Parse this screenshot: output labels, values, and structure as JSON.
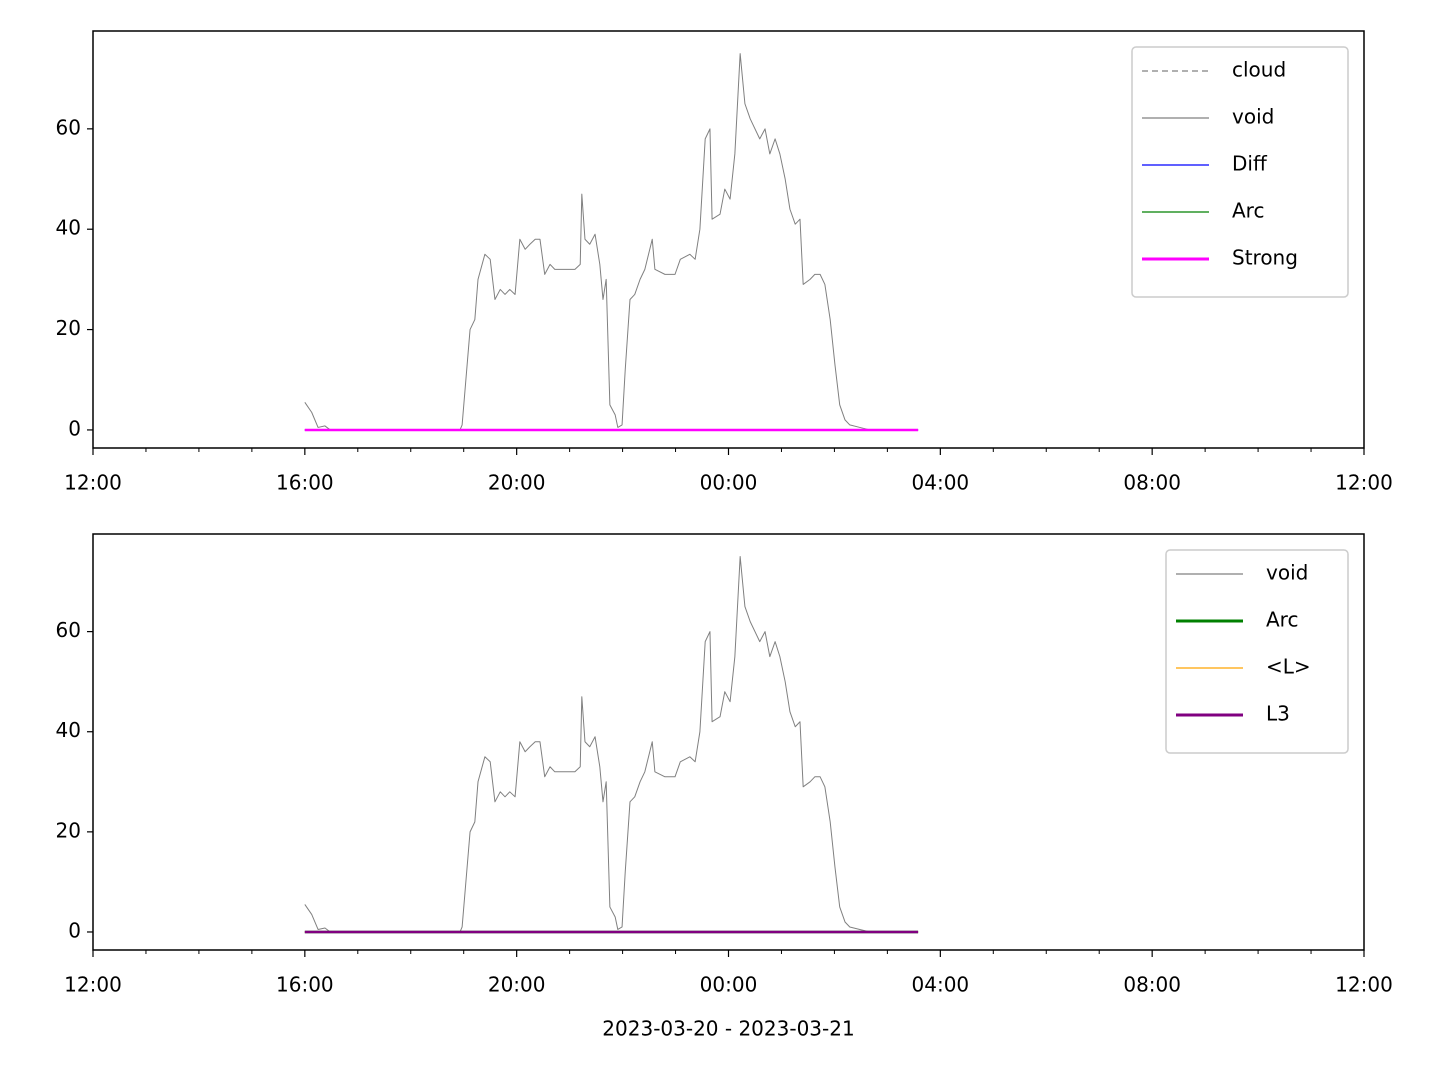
{
  "chart_data": [
    {
      "type": "line",
      "xlim": [
        12,
        36
      ],
      "ylim": [
        -3.6,
        79.5
      ],
      "xticks": [
        {
          "value": 12,
          "label": "12:00"
        },
        {
          "value": 16,
          "label": "16:00"
        },
        {
          "value": 20,
          "label": "20:00"
        },
        {
          "value": 24,
          "label": "00:00"
        },
        {
          "value": 28,
          "label": "04:00"
        },
        {
          "value": 32,
          "label": "08:00"
        },
        {
          "value": 36,
          "label": "12:00"
        }
      ],
      "xminorticks": [
        13,
        14,
        15,
        17,
        18,
        19,
        21,
        22,
        23,
        25,
        26,
        27,
        29,
        30,
        31,
        33,
        34,
        35
      ],
      "yticks": [
        0,
        20,
        40,
        60
      ],
      "legend": "upper right",
      "series": [
        {
          "name": "cloud",
          "color": "#808080",
          "dashed": true,
          "width": 1,
          "x": [
            16.0,
            27.58
          ],
          "values": [
            0,
            0
          ]
        },
        {
          "name": "void",
          "color": "#808080",
          "width": 1,
          "x": [
            16.0,
            16.13,
            16.25,
            16.38,
            16.48,
            18.93,
            18.97,
            19.12,
            19.21,
            19.27,
            19.4,
            19.5,
            19.59,
            19.69,
            19.78,
            19.87,
            19.97,
            20.06,
            20.16,
            20.25,
            20.35,
            20.44,
            20.53,
            20.63,
            20.72,
            20.91,
            21.1,
            21.2,
            21.23,
            21.29,
            21.38,
            21.48,
            21.57,
            21.63,
            21.69,
            21.76,
            21.86,
            21.91,
            21.99,
            22.05,
            22.14,
            22.23,
            22.33,
            22.42,
            22.56,
            22.61,
            22.8,
            22.99,
            23.09,
            23.27,
            23.37,
            23.46,
            23.56,
            23.65,
            23.69,
            23.84,
            23.93,
            24.03,
            24.12,
            24.22,
            24.31,
            24.41,
            24.59,
            24.69,
            24.78,
            24.88,
            24.97,
            25.07,
            25.16,
            25.26,
            25.35,
            25.41,
            25.54,
            25.63,
            25.73,
            25.82,
            25.92,
            26.01,
            26.1,
            26.2,
            26.29,
            26.48,
            26.67,
            27.58
          ],
          "values": [
            5.5,
            3.5,
            0.5,
            0.8,
            0,
            0,
            1,
            20,
            22,
            30,
            35,
            34,
            26,
            28,
            27,
            28,
            27,
            38,
            36,
            37,
            38,
            38,
            31,
            33,
            32,
            32,
            32,
            33,
            47,
            38,
            37,
            39,
            33,
            26,
            30,
            5,
            3,
            0.5,
            1,
            12,
            26,
            27,
            30,
            32,
            38,
            32,
            31,
            31,
            34,
            35,
            34,
            40,
            58,
            60,
            42,
            43,
            48,
            46,
            55,
            75,
            65,
            62,
            58,
            60,
            55,
            58,
            55,
            50,
            44,
            41,
            42,
            29,
            30,
            31,
            31,
            29,
            22,
            13,
            5,
            2,
            1,
            0.5,
            0,
            0
          ]
        },
        {
          "name": "Diff",
          "color": "#0000ff",
          "width": 1,
          "x": [
            16.0,
            27.58
          ],
          "values": [
            0,
            0
          ]
        },
        {
          "name": "Arc",
          "color": "#008000",
          "width": 1,
          "x": [
            16.0,
            27.58
          ],
          "values": [
            0,
            0
          ]
        },
        {
          "name": "Strong",
          "color": "#ff00ff",
          "width": 2.5,
          "x": [
            16.0,
            27.58
          ],
          "values": [
            0,
            0
          ]
        }
      ]
    },
    {
      "type": "line",
      "xlabel": "2023-03-20 - 2023-03-21",
      "xlim": [
        12,
        36
      ],
      "ylim": [
        -3.6,
        79.5
      ],
      "xticks": [
        {
          "value": 12,
          "label": "12:00"
        },
        {
          "value": 16,
          "label": "16:00"
        },
        {
          "value": 20,
          "label": "20:00"
        },
        {
          "value": 24,
          "label": "00:00"
        },
        {
          "value": 28,
          "label": "04:00"
        },
        {
          "value": 32,
          "label": "08:00"
        },
        {
          "value": 36,
          "label": "12:00"
        }
      ],
      "xminorticks": [
        13,
        14,
        15,
        17,
        18,
        19,
        21,
        22,
        23,
        25,
        26,
        27,
        29,
        30,
        31,
        33,
        34,
        35
      ],
      "yticks": [
        0,
        20,
        40,
        60
      ],
      "legend": "upper right",
      "series": [
        {
          "name": "void",
          "color": "#808080",
          "width": 1,
          "x": [
            16.0,
            16.13,
            16.25,
            16.38,
            16.48,
            18.93,
            18.97,
            19.12,
            19.21,
            19.27,
            19.4,
            19.5,
            19.59,
            19.69,
            19.78,
            19.87,
            19.97,
            20.06,
            20.16,
            20.25,
            20.35,
            20.44,
            20.53,
            20.63,
            20.72,
            20.91,
            21.1,
            21.2,
            21.23,
            21.29,
            21.38,
            21.48,
            21.57,
            21.63,
            21.69,
            21.76,
            21.86,
            21.91,
            21.99,
            22.05,
            22.14,
            22.23,
            22.33,
            22.42,
            22.56,
            22.61,
            22.8,
            22.99,
            23.09,
            23.27,
            23.37,
            23.46,
            23.56,
            23.65,
            23.69,
            23.84,
            23.93,
            24.03,
            24.12,
            24.22,
            24.31,
            24.41,
            24.59,
            24.69,
            24.78,
            24.88,
            24.97,
            25.07,
            25.16,
            25.26,
            25.35,
            25.41,
            25.54,
            25.63,
            25.73,
            25.82,
            25.92,
            26.01,
            26.1,
            26.2,
            26.29,
            26.48,
            26.67,
            27.58
          ],
          "values": [
            5.5,
            3.5,
            0.5,
            0.8,
            0,
            0,
            1,
            20,
            22,
            30,
            35,
            34,
            26,
            28,
            27,
            28,
            27,
            38,
            36,
            37,
            38,
            38,
            31,
            33,
            32,
            32,
            32,
            33,
            47,
            38,
            37,
            39,
            33,
            26,
            30,
            5,
            3,
            0.5,
            1,
            12,
            26,
            27,
            30,
            32,
            38,
            32,
            31,
            31,
            34,
            35,
            34,
            40,
            58,
            60,
            42,
            43,
            48,
            46,
            55,
            75,
            65,
            62,
            58,
            60,
            55,
            58,
            55,
            50,
            44,
            41,
            42,
            29,
            30,
            31,
            31,
            29,
            22,
            13,
            5,
            2,
            1,
            0.5,
            0,
            0
          ]
        },
        {
          "name": "Arc",
          "color": "#008000",
          "width": 2.5,
          "x": [
            16.0,
            27.58
          ],
          "values": [
            0,
            0
          ]
        },
        {
          "name": "<L>",
          "color": "#ffa500",
          "width": 1,
          "x": [
            16.0,
            27.58
          ],
          "values": [
            0,
            0
          ]
        },
        {
          "name": "L3",
          "color": "#800080",
          "width": 2.5,
          "x": [
            16.0,
            27.58
          ],
          "values": [
            0,
            0
          ]
        }
      ]
    }
  ]
}
